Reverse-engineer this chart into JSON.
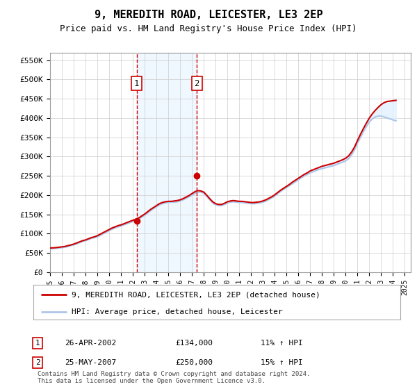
{
  "title": "9, MEREDITH ROAD, LEICESTER, LE3 2EP",
  "subtitle": "Price paid vs. HM Land Registry's House Price Index (HPI)",
  "ytick_values": [
    0,
    50000,
    100000,
    150000,
    200000,
    250000,
    300000,
    350000,
    400000,
    450000,
    500000,
    550000
  ],
  "ylim": [
    0,
    570000
  ],
  "xlim_start": 1995.0,
  "xlim_end": 2025.5,
  "sale1_x": 2002.32,
  "sale1_y": 134000,
  "sale1_label": "1",
  "sale1_date": "26-APR-2002",
  "sale1_price": "£134,000",
  "sale1_hpi": "11% ↑ HPI",
  "sale2_x": 2007.4,
  "sale2_y": 250000,
  "sale2_label": "2",
  "sale2_date": "25-MAY-2007",
  "sale2_price": "£250,000",
  "sale2_hpi": "15% ↑ HPI",
  "hpi_color": "#aec6e8",
  "price_color": "#cc0000",
  "sale_marker_color": "#cc0000",
  "vline_color": "#cc0000",
  "shade_color": "#ddeeff",
  "background_color": "#ffffff",
  "grid_color": "#cccccc",
  "legend_line1": "9, MEREDITH ROAD, LEICESTER, LE3 2EP (detached house)",
  "legend_line2": "HPI: Average price, detached house, Leicester",
  "footnote": "Contains HM Land Registry data © Crown copyright and database right 2024.\nThis data is licensed under the Open Government Licence v3.0.",
  "data_x": [
    1995.0,
    1995.25,
    1995.5,
    1995.75,
    1996.0,
    1996.25,
    1996.5,
    1996.75,
    1997.0,
    1997.25,
    1997.5,
    1997.75,
    1998.0,
    1998.25,
    1998.5,
    1998.75,
    1999.0,
    1999.25,
    1999.5,
    1999.75,
    2000.0,
    2000.25,
    2000.5,
    2000.75,
    2001.0,
    2001.25,
    2001.5,
    2001.75,
    2002.0,
    2002.25,
    2002.5,
    2002.75,
    2003.0,
    2003.25,
    2003.5,
    2003.75,
    2004.0,
    2004.25,
    2004.5,
    2004.75,
    2005.0,
    2005.25,
    2005.5,
    2005.75,
    2006.0,
    2006.25,
    2006.5,
    2006.75,
    2007.0,
    2007.25,
    2007.5,
    2007.75,
    2008.0,
    2008.25,
    2008.5,
    2008.75,
    2009.0,
    2009.25,
    2009.5,
    2009.75,
    2010.0,
    2010.25,
    2010.5,
    2010.75,
    2011.0,
    2011.25,
    2011.5,
    2011.75,
    2012.0,
    2012.25,
    2012.5,
    2012.75,
    2013.0,
    2013.25,
    2013.5,
    2013.75,
    2014.0,
    2014.25,
    2014.5,
    2014.75,
    2015.0,
    2015.25,
    2015.5,
    2015.75,
    2016.0,
    2016.25,
    2016.5,
    2016.75,
    2017.0,
    2017.25,
    2017.5,
    2017.75,
    2018.0,
    2018.25,
    2018.5,
    2018.75,
    2019.0,
    2019.25,
    2019.5,
    2019.75,
    2020.0,
    2020.25,
    2020.5,
    2020.75,
    2021.0,
    2021.25,
    2021.5,
    2021.75,
    2022.0,
    2022.25,
    2022.5,
    2022.75,
    2023.0,
    2023.25,
    2023.5,
    2023.75,
    2024.0,
    2024.25,
    2024.5
  ],
  "hpi_data_y": [
    61000,
    61500,
    62000,
    63000,
    64000,
    65000,
    67000,
    69000,
    71000,
    74000,
    77000,
    80000,
    82000,
    85000,
    88000,
    90000,
    92000,
    96000,
    100000,
    104000,
    108000,
    112000,
    115000,
    118000,
    120000,
    123000,
    126000,
    129000,
    132000,
    134000,
    138000,
    143000,
    148000,
    154000,
    160000,
    165000,
    170000,
    175000,
    178000,
    180000,
    181000,
    182000,
    182000,
    183000,
    185000,
    188000,
    192000,
    196000,
    200000,
    205000,
    208000,
    208000,
    205000,
    197000,
    188000,
    180000,
    175000,
    173000,
    173000,
    176000,
    180000,
    182000,
    183000,
    182000,
    181000,
    181000,
    180000,
    179000,
    178000,
    178000,
    179000,
    180000,
    182000,
    185000,
    189000,
    193000,
    198000,
    204000,
    210000,
    215000,
    220000,
    225000,
    230000,
    235000,
    240000,
    245000,
    250000,
    254000,
    258000,
    261000,
    264000,
    267000,
    269000,
    271000,
    273000,
    275000,
    277000,
    280000,
    283000,
    286000,
    289000,
    295000,
    305000,
    318000,
    335000,
    350000,
    365000,
    378000,
    390000,
    398000,
    403000,
    405000,
    405000,
    403000,
    400000,
    398000,
    395000,
    393000
  ],
  "price_data_y": [
    63000,
    63500,
    64000,
    65000,
    66000,
    67000,
    69000,
    71000,
    73000,
    76000,
    79000,
    82000,
    84000,
    87000,
    90000,
    92000,
    95000,
    99000,
    103000,
    107000,
    111000,
    115000,
    118000,
    121000,
    123000,
    126000,
    129000,
    132000,
    135000,
    137000,
    141000,
    146000,
    151000,
    157000,
    163000,
    168000,
    173000,
    178000,
    181000,
    183000,
    184000,
    184000,
    185000,
    186000,
    188000,
    191000,
    195000,
    199000,
    204000,
    209000,
    212000,
    211000,
    208000,
    200000,
    191000,
    183000,
    178000,
    176000,
    176000,
    179000,
    183000,
    185000,
    186000,
    185000,
    184000,
    184000,
    183000,
    182000,
    181000,
    181000,
    182000,
    183000,
    185000,
    188000,
    192000,
    196000,
    201000,
    207000,
    213000,
    218000,
    223000,
    228000,
    234000,
    239000,
    244000,
    249000,
    254000,
    258000,
    263000,
    266000,
    269000,
    272000,
    275000,
    277000,
    279000,
    281000,
    283000,
    286000,
    289000,
    292000,
    296000,
    302000,
    312000,
    325000,
    342000,
    358000,
    373000,
    387000,
    400000,
    411000,
    420000,
    428000,
    435000,
    440000,
    443000,
    444000,
    445000,
    446000
  ]
}
